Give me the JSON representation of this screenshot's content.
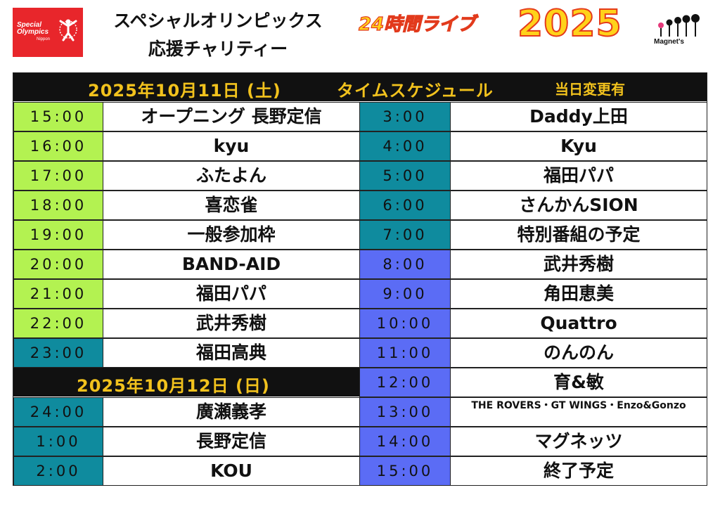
{
  "header": {
    "logo_left": {
      "line1": "Special",
      "line2": "Olympics",
      "line3": "Nippon"
    },
    "title_line1": "スペシャルオリンピックス",
    "title_line2": "応援チャリティー",
    "live_label": "24時間ライブ",
    "year": "2025",
    "logo_right": "Magnet's"
  },
  "schedule": {
    "day1_date": "2025年10月11日 (土)",
    "heading": "タイムスケジュール",
    "change_note": "当日変更有",
    "day2_date": "2025年10月12日 (日)",
    "colors": {
      "green": "#b3f251",
      "teal": "#0f8b9e",
      "blue": "#5b6cf5"
    },
    "left": [
      {
        "time": "15:00",
        "performer": "オープニング 長野定信",
        "color": "green"
      },
      {
        "time": "16:00",
        "performer": "kyu",
        "color": "green"
      },
      {
        "time": "17:00",
        "performer": "ふたよん",
        "color": "green"
      },
      {
        "time": "18:00",
        "performer": "喜恋雀",
        "color": "green"
      },
      {
        "time": "19:00",
        "performer": "一般参加枠",
        "color": "green"
      },
      {
        "time": "20:00",
        "performer": "BAND-AID",
        "color": "green"
      },
      {
        "time": "21:00",
        "performer": "福田パパ",
        "color": "green"
      },
      {
        "time": "22:00",
        "performer": "武井秀樹",
        "color": "green"
      },
      {
        "time": "23:00",
        "performer": "福田高典",
        "color": "teal"
      },
      {
        "time": "24:00",
        "performer": "廣瀬義孝",
        "color": "teal"
      },
      {
        "time": "1:00",
        "performer": "長野定信",
        "color": "teal"
      },
      {
        "time": "2:00",
        "performer": "KOU",
        "color": "teal"
      }
    ],
    "right": [
      {
        "time": "3:00",
        "performer": "Daddy上田",
        "color": "teal"
      },
      {
        "time": "4:00",
        "performer": "Kyu",
        "color": "teal"
      },
      {
        "time": "5:00",
        "performer": "福田パパ",
        "color": "teal"
      },
      {
        "time": "6:00",
        "performer": "さんかんSION",
        "color": "teal"
      },
      {
        "time": "7:00",
        "performer": "特別番組の予定",
        "color": "teal"
      },
      {
        "time": "8:00",
        "performer": "武井秀樹",
        "color": "blue"
      },
      {
        "time": "9:00",
        "performer": "角田恵美",
        "color": "blue"
      },
      {
        "time": "10:00",
        "performer": "Quattro",
        "color": "blue"
      },
      {
        "time": "11:00",
        "performer": "のんのん",
        "color": "blue"
      },
      {
        "time": "12:00",
        "performer": "育&敏",
        "color": "blue"
      },
      {
        "time": "13:00",
        "performer": "THE ROVERS・GT WINGS・Enzo&Gonzo",
        "color": "blue",
        "small": true
      },
      {
        "time": "14:00",
        "performer": "マグネッツ",
        "color": "blue"
      },
      {
        "time": "15:00",
        "performer": "終了予定",
        "color": "blue"
      }
    ]
  }
}
